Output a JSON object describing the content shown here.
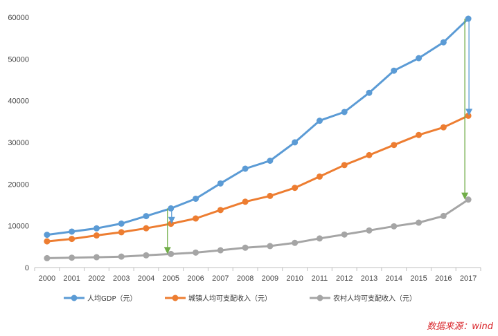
{
  "chart_data": {
    "type": "line",
    "categories": [
      "2000",
      "2001",
      "2002",
      "2003",
      "2004",
      "2005",
      "2006",
      "2007",
      "2008",
      "2009",
      "2010",
      "2011",
      "2012",
      "2013",
      "2014",
      "2015",
      "2016",
      "2017"
    ],
    "series": [
      {
        "name": "人均GDP（元）",
        "color": "#5b9bd5",
        "values": [
          7858,
          8622,
          9398,
          10542,
          12336,
          14185,
          16500,
          20169,
          23708,
          25608,
          30015,
          35198,
          37300,
          41900,
          47200,
          50200,
          54000,
          59660
        ]
      },
      {
        "name": "城镇人均可支配收入（元）",
        "color": "#ed7d31",
        "values": [
          6280,
          6860,
          7703,
          8472,
          9422,
          10493,
          11760,
          13786,
          15781,
          17175,
          19109,
          21810,
          24565,
          26955,
          29381,
          31790,
          33616,
          36396
        ]
      },
      {
        "name": "农村人均可支配收入（元）",
        "color": "#a5a5a5",
        "values": [
          2253,
          2366,
          2476,
          2622,
          2936,
          3255,
          3587,
          4140,
          4761,
          5153,
          5919,
          6977,
          7917,
          8896,
          9892,
          10772,
          12363,
          16300
        ]
      }
    ],
    "ylim": [
      0,
      60000
    ],
    "yticks": [
      "0",
      "10000",
      "20000",
      "30000",
      "40000",
      "50000",
      "60000"
    ],
    "grid": false,
    "legend_position": "bottom",
    "annotations": [
      {
        "type": "arrow",
        "color": "#5b9bd5",
        "x": "2005",
        "from": 14185,
        "to": 10493
      },
      {
        "type": "arrow",
        "color": "#70ad47",
        "x": "2005",
        "from": 14185,
        "to": 3255
      },
      {
        "type": "arrow",
        "color": "#5b9bd5",
        "x": "2017",
        "from": 59660,
        "to": 36396
      },
      {
        "type": "arrow",
        "color": "#70ad47",
        "x": "2017",
        "from": 59660,
        "to": 16300
      }
    ]
  },
  "source_note": "数据来源：wind"
}
